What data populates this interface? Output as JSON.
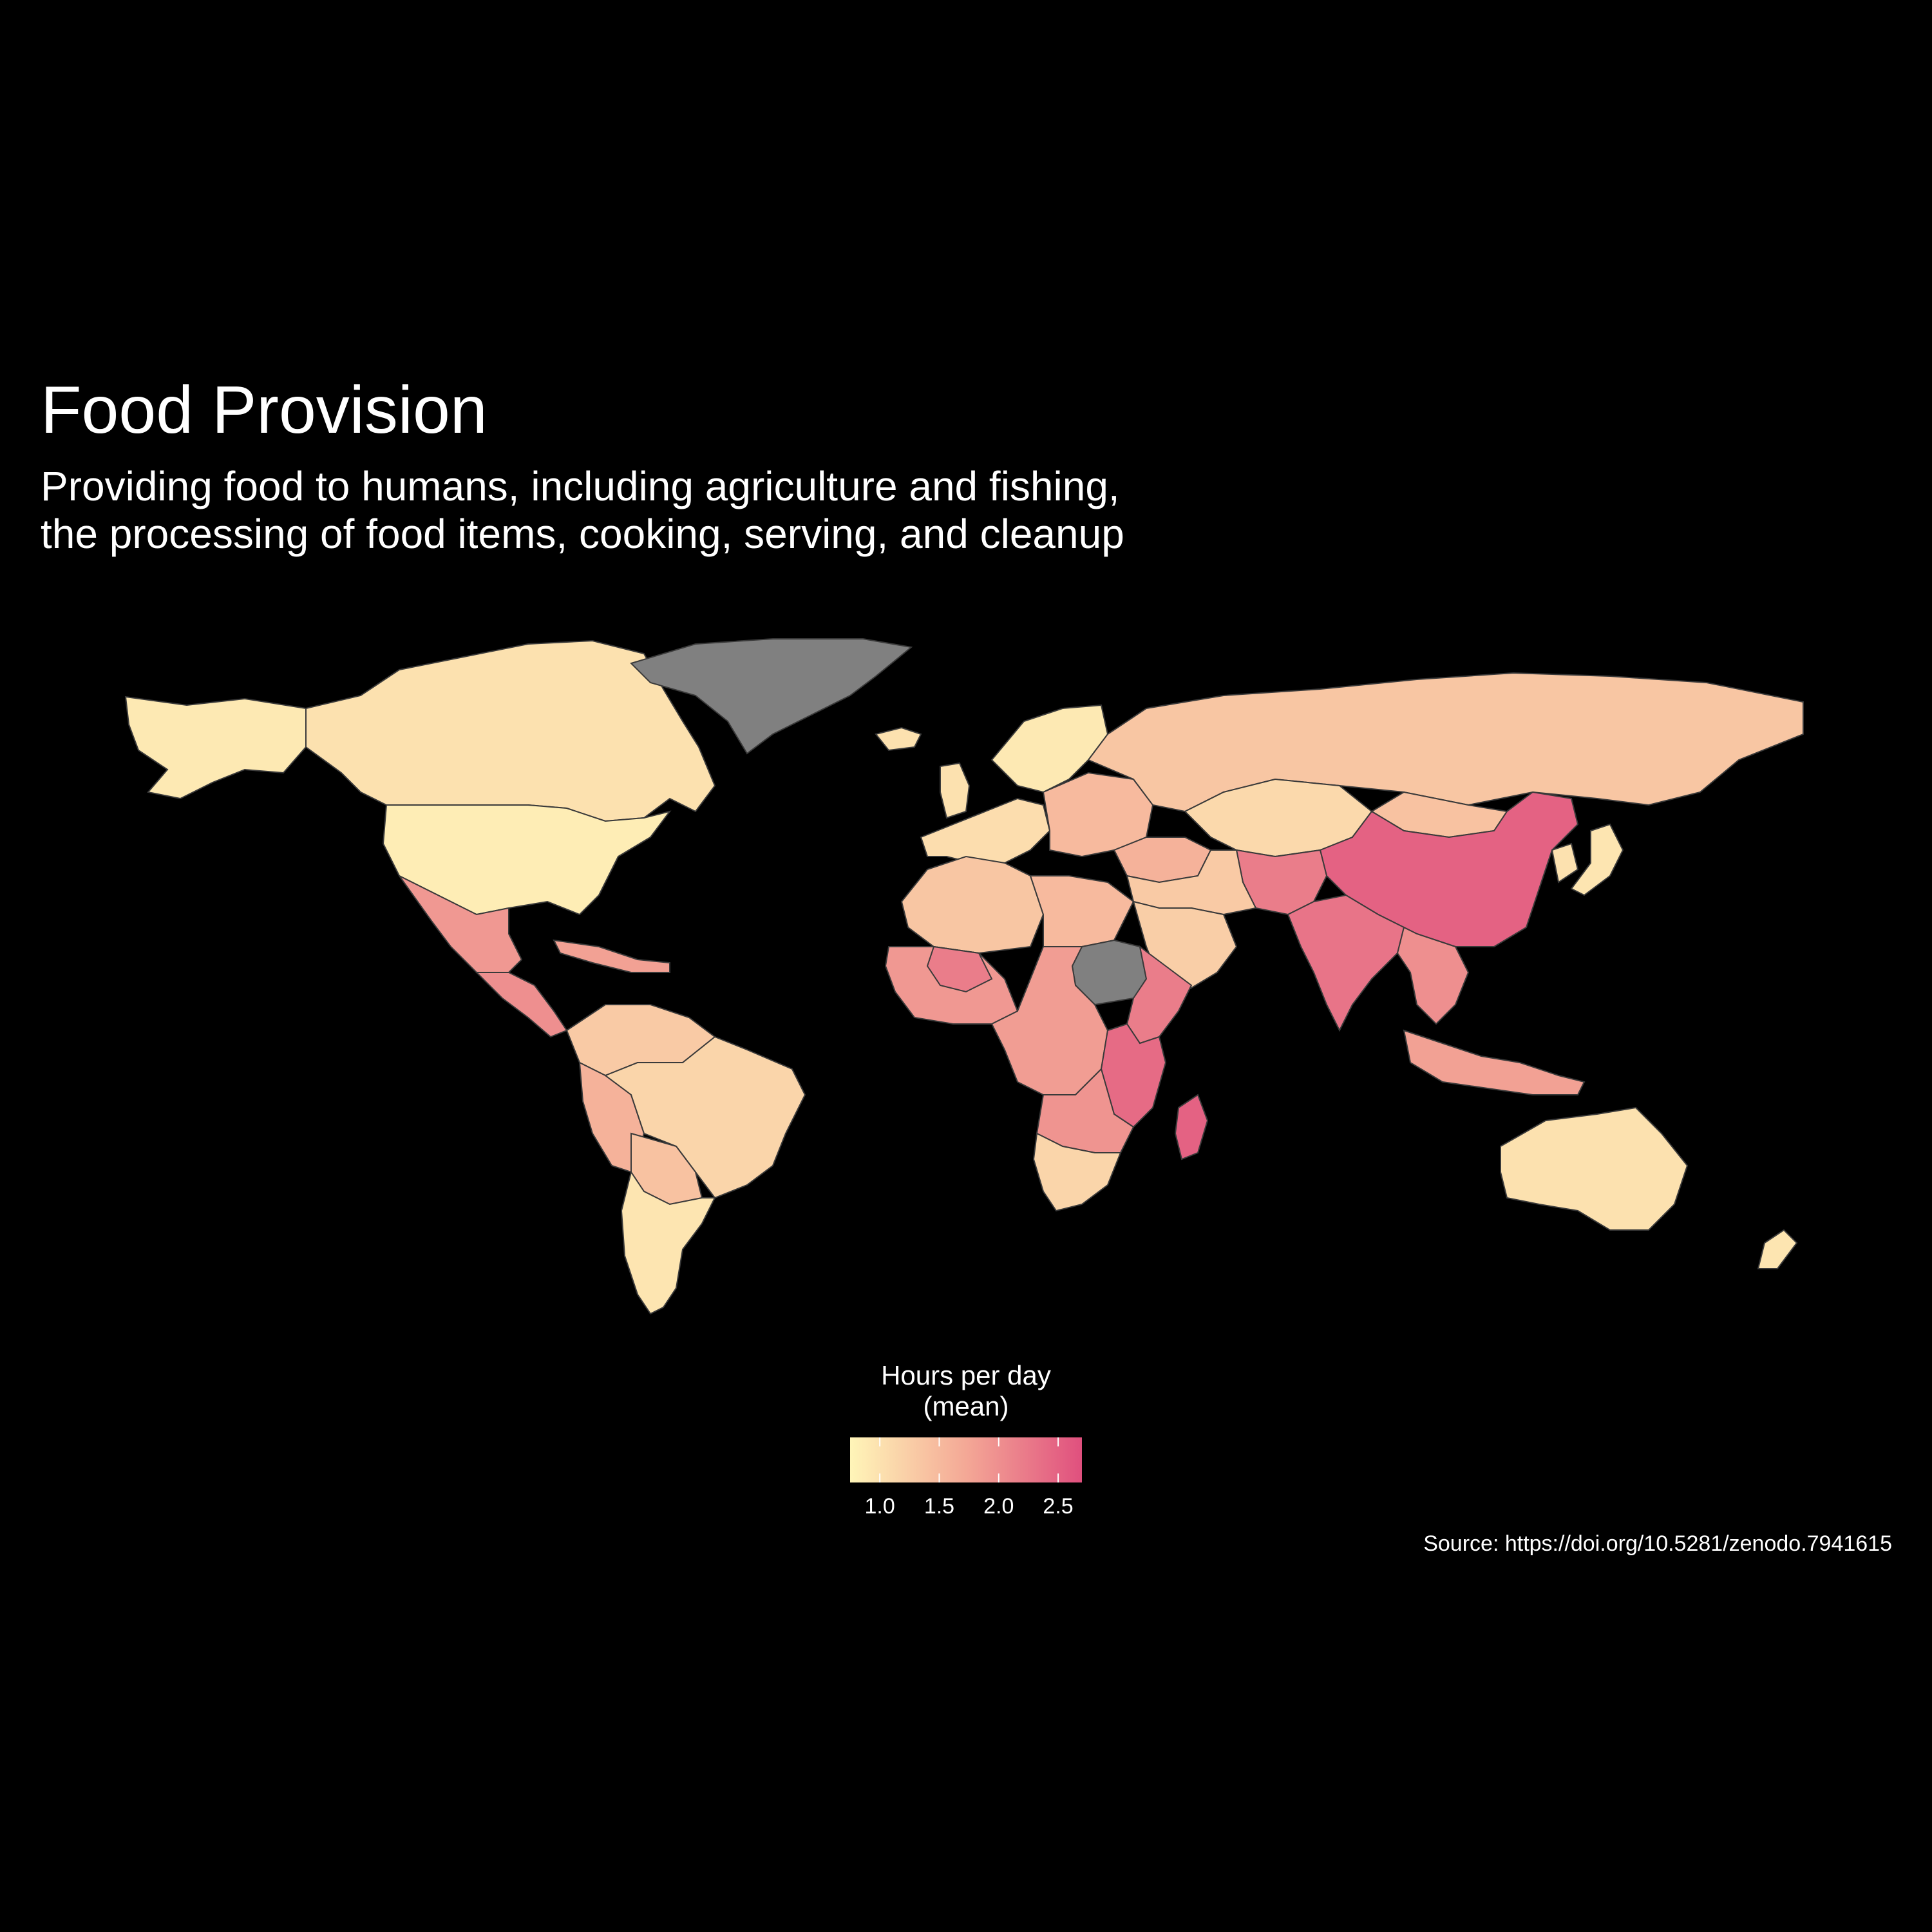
{
  "title": "Food Provision",
  "subtitle": [
    "Providing food to humans, including agriculture and fishing,",
    "the processing of food items, cooking, serving, and cleanup"
  ],
  "legend": {
    "title_lines": [
      "Hours per day",
      "(mean)"
    ],
    "min": 0.75,
    "max": 2.7,
    "ticks": [
      {
        "value": 1.0,
        "label": "1.0"
      },
      {
        "value": 1.5,
        "label": "1.5"
      },
      {
        "value": 2.0,
        "label": "2.0"
      },
      {
        "value": 2.5,
        "label": "2.5"
      }
    ],
    "color_low": "#fff5b8",
    "color_mid": "#f4a896",
    "color_high": "#e0507e"
  },
  "colors": {
    "background": "#000000",
    "no_data": "#808080",
    "border": "#3a3a3a"
  },
  "caption": "Source: https://doi.org/10.5281/zenodo.7941615",
  "chart_data": {
    "type": "choropleth",
    "regions": [
      {
        "name": "Alaska",
        "value": 0.9
      },
      {
        "name": "Canada",
        "value": 1.0
      },
      {
        "name": "United States",
        "value": 0.85
      },
      {
        "name": "Mexico",
        "value": 1.9
      },
      {
        "name": "Central America",
        "value": 2.0
      },
      {
        "name": "Caribbean",
        "value": 1.8
      },
      {
        "name": "Greenland",
        "value": null
      },
      {
        "name": "Colombia / Venezuela",
        "value": 1.3
      },
      {
        "name": "Peru",
        "value": 1.6
      },
      {
        "name": "Brazil",
        "value": 1.15
      },
      {
        "name": "Bolivia / Paraguay",
        "value": 1.4
      },
      {
        "name": "Argentina / Chile",
        "value": 0.95
      },
      {
        "name": "Iceland",
        "value": 1.0
      },
      {
        "name": "Scandinavia",
        "value": 0.9
      },
      {
        "name": "United Kingdom",
        "value": 1.0
      },
      {
        "name": "Western Europe",
        "value": 1.05
      },
      {
        "name": "Eastern Europe",
        "value": 1.5
      },
      {
        "name": "Russia",
        "value": 1.35
      },
      {
        "name": "Turkey / Caucasus",
        "value": 1.6
      },
      {
        "name": "Kazakhstan / Central Asia",
        "value": 1.1
      },
      {
        "name": "Mongolia",
        "value": 1.4
      },
      {
        "name": "China",
        "value": 2.5
      },
      {
        "name": "Korea",
        "value": 1.0
      },
      {
        "name": "Japan",
        "value": 0.95
      },
      {
        "name": "Afghanistan / Pakistan",
        "value": 2.2
      },
      {
        "name": "India",
        "value": 2.3
      },
      {
        "name": "Middle East",
        "value": 1.3
      },
      {
        "name": "Arabian Peninsula",
        "value": 1.25
      },
      {
        "name": "Southeast Asia",
        "value": 2.0
      },
      {
        "name": "Indonesia / Philippines",
        "value": 1.8
      },
      {
        "name": "Australia",
        "value": 1.0
      },
      {
        "name": "New Zealand",
        "value": 0.95
      },
      {
        "name": "North Africa",
        "value": 1.35
      },
      {
        "name": "Libya / Egypt",
        "value": 1.5
      },
      {
        "name": "West Africa",
        "value": 1.9
      },
      {
        "name": "Mali",
        "value": 2.2
      },
      {
        "name": "Sudan",
        "value": null
      },
      {
        "name": "Ethiopia / Horn",
        "value": 2.2
      },
      {
        "name": "Central Africa",
        "value": 1.85
      },
      {
        "name": "East Africa",
        "value": 2.4
      },
      {
        "name": "Southern Africa",
        "value": 1.95
      },
      {
        "name": "South Africa / Namibia",
        "value": 1.15
      },
      {
        "name": "Madagascar",
        "value": 2.5
      }
    ]
  }
}
